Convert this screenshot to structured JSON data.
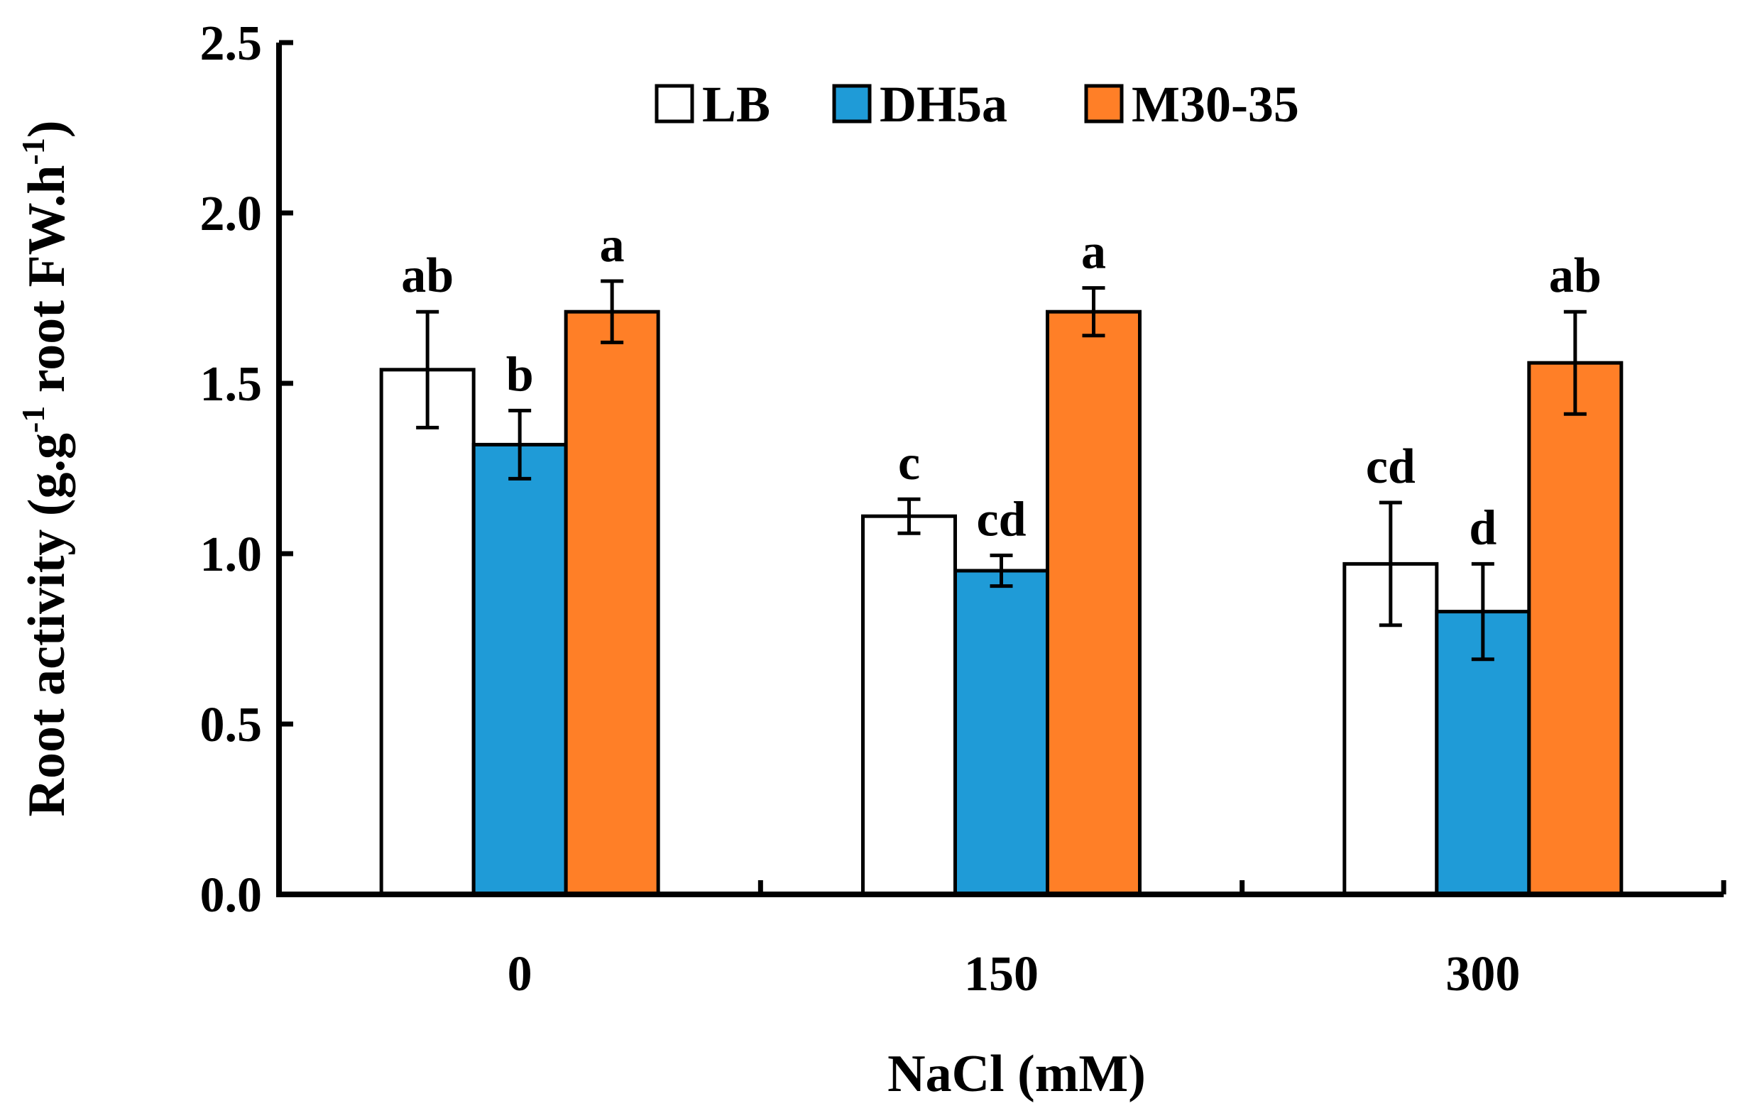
{
  "chart_data": {
    "type": "bar",
    "title": "",
    "xlabel": "NaCl (mM)",
    "ylabel": {
      "main": "Root activity (g.g",
      "sup1": "-1",
      "mid": " root FW.h",
      "sup2": "-1",
      "end": ")"
    },
    "categories": [
      "0",
      "150",
      "300"
    ],
    "ylim": [
      0,
      2.5
    ],
    "yticks": [
      0,
      0.5,
      1.0,
      1.5,
      2.0,
      2.5
    ],
    "ytick_labels": [
      "0.0",
      "0.5",
      "1.0",
      "1.5",
      "2.0",
      "2.5"
    ],
    "legend_position": "top-center",
    "grid": false,
    "series": [
      {
        "name": "LB",
        "color": "#FFFFFF",
        "values": [
          1.54,
          1.11,
          0.97
        ],
        "errors": [
          0.17,
          0.05,
          0.18
        ],
        "labels": [
          "ab",
          "c",
          "cd"
        ]
      },
      {
        "name": "DH5a",
        "color": "#1F9BD7",
        "values": [
          1.32,
          0.95,
          0.83
        ],
        "errors": [
          0.1,
          0.045,
          0.14
        ],
        "labels": [
          "b",
          "cd",
          "d"
        ]
      },
      {
        "name": "M30-35",
        "color": "#FF7F27",
        "values": [
          1.71,
          1.71,
          1.56
        ],
        "errors": [
          0.09,
          0.07,
          0.15
        ],
        "labels": [
          "a",
          "a",
          "ab"
        ]
      }
    ]
  }
}
